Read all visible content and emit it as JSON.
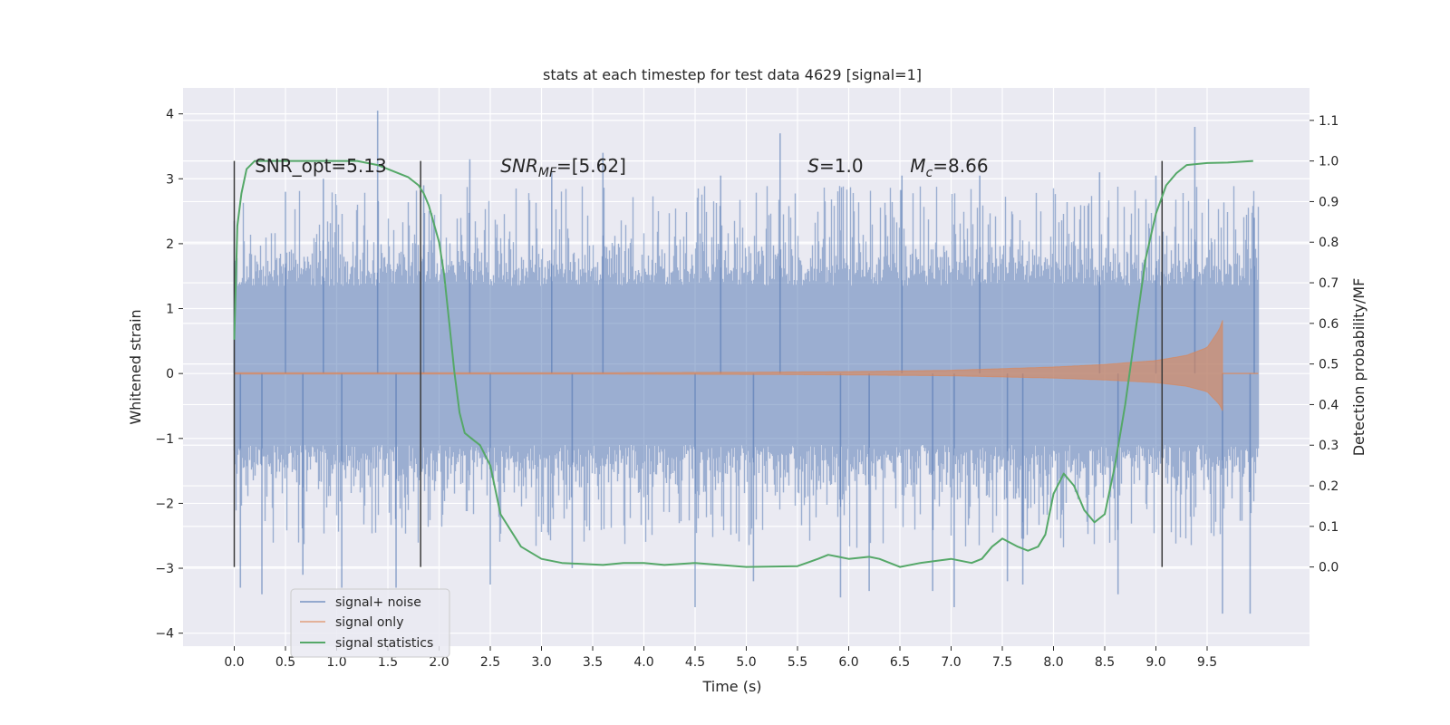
{
  "chart_data": {
    "type": "line",
    "title": "stats at each timestep for test data 4629 [signal=1]",
    "xlabel": "Time (s)",
    "ylabel": "Whitened strain",
    "ylabel_right": "Detection probability/MF",
    "xlim": [
      -0.5,
      10.5
    ],
    "ylim": [
      -4.2,
      4.4
    ],
    "ylim_right": [
      -0.195,
      1.18
    ],
    "x_ticks": [
      0.0,
      0.5,
      1.0,
      1.5,
      2.0,
      2.5,
      3.0,
      3.5,
      4.0,
      4.5,
      5.0,
      5.5,
      6.0,
      6.5,
      7.0,
      7.5,
      8.0,
      8.5,
      9.0,
      9.5
    ],
    "x_tick_labels": [
      "0.0",
      "0.5",
      "1.0",
      "1.5",
      "2.0",
      "2.5",
      "3.0",
      "3.5",
      "4.0",
      "4.5",
      "5.0",
      "5.5",
      "6.0",
      "6.5",
      "7.0",
      "7.5",
      "8.0",
      "8.5",
      "9.0",
      "9.5"
    ],
    "y_ticks": [
      4,
      3,
      2,
      1,
      0,
      -1,
      -2,
      -3,
      -4
    ],
    "y_tick_labels": [
      "4",
      "3",
      "2",
      "1",
      "0",
      "−1",
      "−2",
      "−3",
      "−4"
    ],
    "y_ticks_right": [
      1.1,
      1.0,
      0.9,
      0.8,
      0.7,
      0.6,
      0.5,
      0.4,
      0.3,
      0.2,
      0.1,
      0.0
    ],
    "y_tick_labels_right": [
      "1.1",
      "1.0",
      "0.9",
      "0.8",
      "0.7",
      "0.6",
      "0.5",
      "0.4",
      "0.3",
      "0.2",
      "0.1",
      "0.0"
    ],
    "grid": true,
    "legend_position": "lower-left",
    "colors": {
      "background": "#eaeaf2",
      "grid": "#ffffff",
      "signal_noise": "#4c72b0",
      "signal_only": "#dd8452",
      "signal_stats": "#55a868",
      "vlines": "#3a3a3a"
    },
    "series": [
      {
        "name": "signal+ noise",
        "axis": "left",
        "style": "dense_noise",
        "x_range": [
          0.0,
          10.0
        ],
        "core_envelope": [
          -1.1,
          1.35
        ],
        "typical_envelope": [
          -1.8,
          2.0
        ],
        "extremes": [
          {
            "x": 0.0,
            "y": 2.35
          },
          {
            "x": 0.06,
            "y": -3.3
          },
          {
            "x": 0.27,
            "y": -3.4
          },
          {
            "x": 0.5,
            "y": 2.8
          },
          {
            "x": 0.67,
            "y": -3.1
          },
          {
            "x": 0.87,
            "y": 3.0
          },
          {
            "x": 1.05,
            "y": -3.3
          },
          {
            "x": 1.4,
            "y": 4.05
          },
          {
            "x": 1.58,
            "y": -3.3
          },
          {
            "x": 1.85,
            "y": 2.9
          },
          {
            "x": 2.3,
            "y": 3.3
          },
          {
            "x": 2.5,
            "y": -3.25
          },
          {
            "x": 3.1,
            "y": 3.1
          },
          {
            "x": 3.3,
            "y": -3.0
          },
          {
            "x": 3.6,
            "y": 3.4
          },
          {
            "x": 4.5,
            "y": -3.6
          },
          {
            "x": 4.75,
            "y": 3.05
          },
          {
            "x": 5.07,
            "y": -3.2
          },
          {
            "x": 5.33,
            "y": 3.7
          },
          {
            "x": 5.92,
            "y": -3.45
          },
          {
            "x": 6.2,
            "y": -3.35
          },
          {
            "x": 6.52,
            "y": 3.05
          },
          {
            "x": 6.82,
            "y": -3.35
          },
          {
            "x": 7.03,
            "y": -3.6
          },
          {
            "x": 7.28,
            "y": 3.05
          },
          {
            "x": 7.55,
            "y": -3.2
          },
          {
            "x": 7.7,
            "y": -3.25
          },
          {
            "x": 8.45,
            "y": 3.1
          },
          {
            "x": 8.63,
            "y": -3.4
          },
          {
            "x": 9.0,
            "y": 3.05
          },
          {
            "x": 9.38,
            "y": 3.8
          },
          {
            "x": 9.65,
            "y": -3.7
          },
          {
            "x": 9.92,
            "y": -3.7
          },
          {
            "x": 9.96,
            "y": 2.4
          }
        ]
      },
      {
        "name": "signal only",
        "axis": "left",
        "style": "chirp",
        "x_range": [
          0.0,
          9.65
        ],
        "chirp_points": [
          {
            "x": 0.0,
            "amp": 0.01
          },
          {
            "x": 3.0,
            "amp": 0.01
          },
          {
            "x": 5.0,
            "amp": 0.02
          },
          {
            "x": 6.0,
            "amp": 0.03
          },
          {
            "x": 7.0,
            "amp": 0.05
          },
          {
            "x": 8.0,
            "amp": 0.1
          },
          {
            "x": 8.5,
            "amp": 0.14
          },
          {
            "x": 9.0,
            "amp": 0.2
          },
          {
            "x": 9.3,
            "amp": 0.28
          },
          {
            "x": 9.5,
            "amp": 0.4
          },
          {
            "x": 9.62,
            "amp": 0.68
          },
          {
            "x": 9.65,
            "amp": 0.82
          }
        ]
      },
      {
        "name": "signal statistics",
        "axis": "right",
        "style": "line",
        "x": [
          0.0,
          0.03,
          0.07,
          0.12,
          0.2,
          0.4,
          0.8,
          1.2,
          1.4,
          1.6,
          1.7,
          1.8,
          1.85,
          1.9,
          2.0,
          2.05,
          2.1,
          2.15,
          2.2,
          2.25,
          2.3,
          2.35,
          2.4,
          2.5,
          2.6,
          2.8,
          3.0,
          3.2,
          3.6,
          3.8,
          4.0,
          4.2,
          4.5,
          5.0,
          5.5,
          5.7,
          5.8,
          5.9,
          6.0,
          6.2,
          6.3,
          6.5,
          6.7,
          7.0,
          7.2,
          7.3,
          7.4,
          7.5,
          7.65,
          7.75,
          7.85,
          7.92,
          8.0,
          8.1,
          8.2,
          8.3,
          8.4,
          8.5,
          8.6,
          8.7,
          8.8,
          8.9,
          9.0,
          9.1,
          9.2,
          9.3,
          9.5,
          9.7,
          9.95
        ],
        "values": [
          0.56,
          0.84,
          0.92,
          0.98,
          1.0,
          1.0,
          1.0,
          1.0,
          0.99,
          0.97,
          0.96,
          0.94,
          0.92,
          0.89,
          0.8,
          0.72,
          0.6,
          0.48,
          0.38,
          0.33,
          0.32,
          0.31,
          0.3,
          0.25,
          0.13,
          0.05,
          0.02,
          0.01,
          0.005,
          0.01,
          0.01,
          0.005,
          0.01,
          0.0,
          0.002,
          0.02,
          0.03,
          0.025,
          0.02,
          0.025,
          0.02,
          0.0,
          0.01,
          0.02,
          0.01,
          0.02,
          0.05,
          0.07,
          0.05,
          0.04,
          0.05,
          0.08,
          0.18,
          0.23,
          0.2,
          0.14,
          0.11,
          0.13,
          0.25,
          0.4,
          0.58,
          0.76,
          0.87,
          0.94,
          0.97,
          0.99,
          0.995,
          0.996,
          1.0
        ]
      }
    ],
    "vlines": [
      {
        "x": 0.0,
        "ymin_right": 0.0,
        "ymax_right": 1.0
      },
      {
        "x": 1.82,
        "ymin_right": 0.0,
        "ymax_right": 1.0
      },
      {
        "x": 9.06,
        "ymin_right": 0.0,
        "ymax_right": 1.0
      }
    ],
    "annotations": [
      {
        "label": "SNR_opt=5.13",
        "x": 0.2,
        "y": 3.2
      },
      {
        "label": "SNR_MF=[5.62]",
        "x": 2.6,
        "y": 3.2
      },
      {
        "label": "S=1.0",
        "x": 5.6,
        "y": 3.2
      },
      {
        "label": "M_c=8.66",
        "x": 6.6,
        "y": 3.2
      }
    ]
  },
  "legend": {
    "items": [
      {
        "label": "signal+ noise",
        "color": "#4c72b0"
      },
      {
        "label": "signal only",
        "color": "#dd8452"
      },
      {
        "label": "signal statistics",
        "color": "#55a868"
      }
    ]
  }
}
